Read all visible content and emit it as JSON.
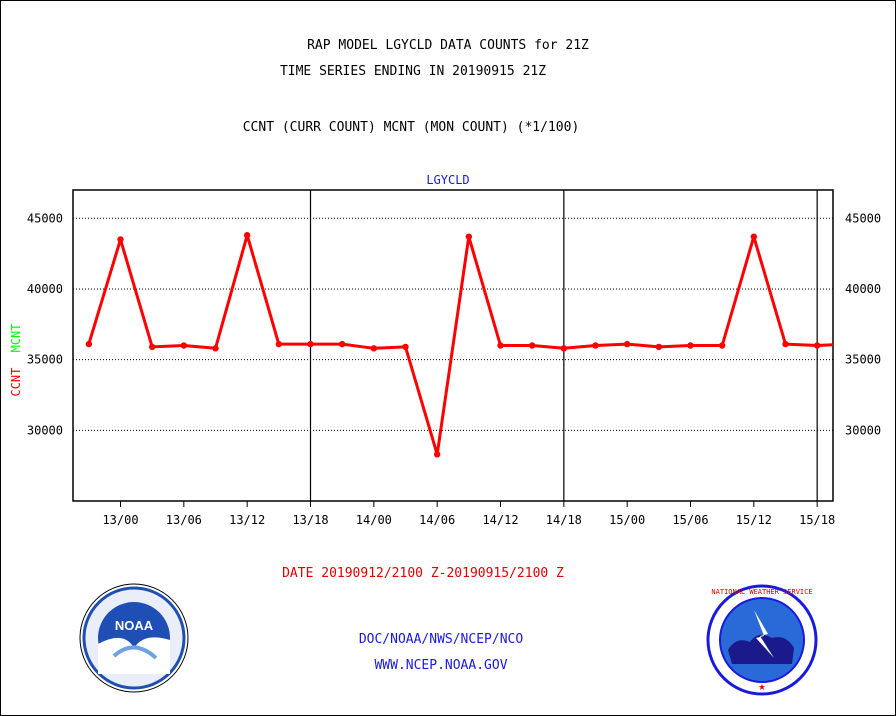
{
  "header": {
    "title_line1": "RAP MODEL LGYCLD DATA COUNTS for 21Z",
    "title_line2": "TIME SERIES ENDING IN 20190915 21Z",
    "title_line3": "CCNT (CURR COUNT) MCNT (MON COUNT) (*1/100)"
  },
  "footer": {
    "date_range": "DATE 20190912/2100 Z-20190915/2100 Z",
    "link1": "DOC/NOAA/NWS/NCEP/NCO",
    "link2": "WWW.NCEP.NOAA.GOV"
  },
  "logos": {
    "noaa_text": "NOAA",
    "nws_text": "NATIONAL WEATHER SERVICE"
  },
  "colors": {
    "ccnt": "#ff0000",
    "mcnt": "#00ff00",
    "label_blue": "#1a1adc",
    "noaa_blue": "#1f4fb5",
    "nws_blue": "#2a6ad8"
  },
  "chart_data": {
    "type": "line",
    "title": "LGYCLD",
    "ylabel_parts": [
      "CCNT",
      "MCNT"
    ],
    "ylim": [
      25000,
      47000
    ],
    "y_ticks": [
      30000,
      35000,
      40000,
      45000
    ],
    "y_tick_labels": [
      "30000",
      "35000",
      "40000",
      "45000"
    ],
    "x_range": [
      -1.5,
      70.5
    ],
    "x_ticks": [
      3,
      9,
      15,
      21,
      27,
      33,
      39,
      45,
      51,
      57,
      63,
      69
    ],
    "x_tick_labels": [
      "13/00",
      "13/06",
      "13/12",
      "13/18",
      "14/00",
      "14/06",
      "14/12",
      "14/18",
      "15/00",
      "15/06",
      "15/12",
      "15/18"
    ],
    "day_boundaries": [
      21,
      45,
      69
    ],
    "grid": true,
    "series": [
      {
        "name": "CCNT",
        "color": "#ff0000",
        "x": [
          0,
          3,
          6,
          9,
          12,
          15,
          18,
          21,
          24,
          27,
          30,
          33,
          36,
          39,
          42,
          45,
          48,
          51,
          54,
          57,
          60,
          63,
          66,
          69,
          72
        ],
        "values": [
          36100,
          43500,
          35900,
          36000,
          35800,
          43800,
          36100,
          36100,
          36100,
          35800,
          35900,
          28300,
          43700,
          36000,
          36000,
          35800,
          36000,
          36100,
          35900,
          36000,
          36000,
          43700,
          36100,
          36000,
          36100
        ]
      }
    ]
  }
}
